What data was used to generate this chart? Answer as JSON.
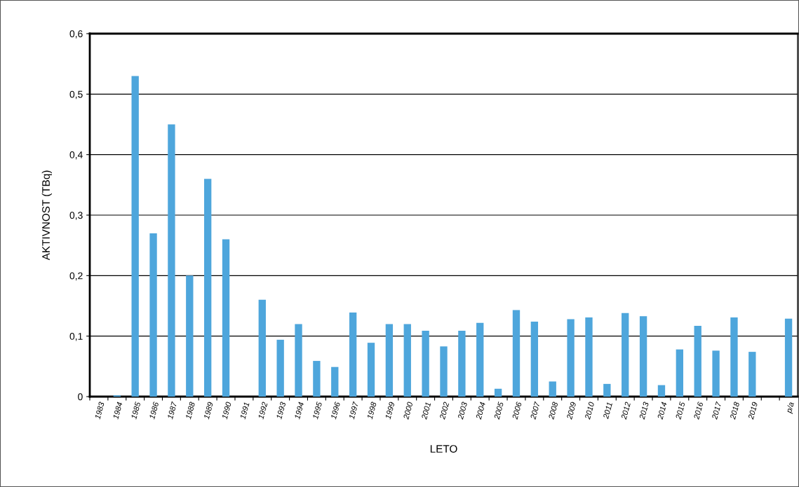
{
  "chart_data": {
    "type": "bar",
    "xlabel": "LETO",
    "ylabel": "AKTIVNOST (TBq)",
    "categories": [
      "1983",
      "1984",
      "1985",
      "1986",
      "1987",
      "1988",
      "1989",
      "1990",
      "1991",
      "1992",
      "1993",
      "1994",
      "1995",
      "1996",
      "1997",
      "1998",
      "1999",
      "2000",
      "2001",
      "2002",
      "2003",
      "2004",
      "2005",
      "2006",
      "2007",
      "2008",
      "2009",
      "2010",
      "2011",
      "2012",
      "2013",
      "2014",
      "2015",
      "2016",
      "2017",
      "2018",
      "2019",
      null,
      "p/a"
    ],
    "values": [
      0,
      0.002,
      0.53,
      0.27,
      0.45,
      0.2,
      0.36,
      0.26,
      0,
      0.16,
      0.094,
      0.12,
      0.059,
      0.049,
      0.139,
      0.089,
      0.12,
      0.12,
      0.109,
      0.083,
      0.109,
      0.122,
      0.013,
      0.143,
      0.124,
      0.025,
      0.128,
      0.131,
      0.021,
      0.138,
      0.133,
      0.019,
      0.078,
      0.117,
      0.076,
      0.131,
      0.074,
      null,
      0.129
    ],
    "color": "#4ea6dc",
    "ylim": [
      0,
      0.6
    ],
    "yticks": [
      {
        "value": 0,
        "label": "0"
      },
      {
        "value": 0.1,
        "label": "0,1"
      },
      {
        "value": 0.2,
        "label": "0,2"
      },
      {
        "value": 0.3,
        "label": "0,3"
      },
      {
        "value": 0.4,
        "label": "0,4"
      },
      {
        "value": 0.5,
        "label": "0,5"
      },
      {
        "value": 0.6,
        "label": "0,6"
      }
    ],
    "grid": "y",
    "legend": false
  }
}
